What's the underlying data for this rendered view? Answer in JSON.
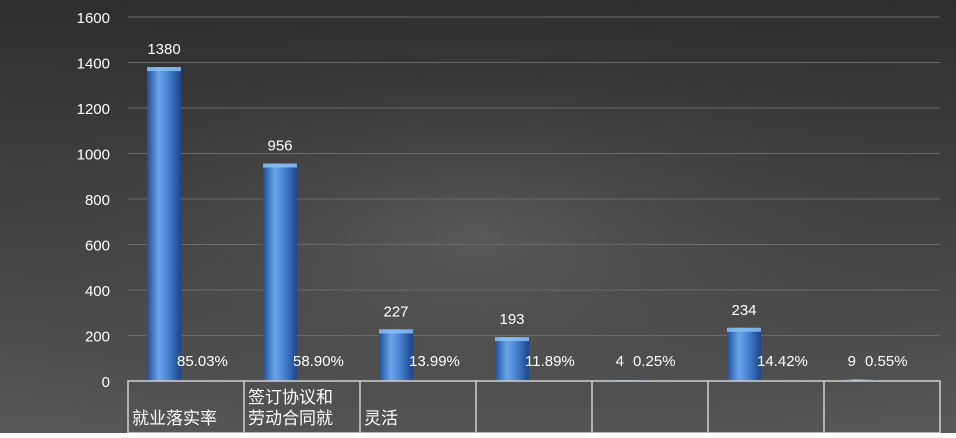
{
  "chart_data": {
    "type": "bar",
    "title": "",
    "xlabel": "",
    "ylabel": "",
    "ylim": [
      0,
      1600
    ],
    "yticks": [
      "0",
      "200",
      "400",
      "600",
      "800",
      "1000",
      "1200",
      "1400",
      "1600"
    ],
    "grid": true,
    "legend": "none",
    "category_labels_visible": [
      [
        "就业落实率"
      ],
      [
        "签订协议和",
        "劳动合同就"
      ],
      [
        "灵活"
      ],
      [
        ""
      ],
      [
        ""
      ],
      [
        ""
      ],
      [
        ""
      ]
    ],
    "values": [
      1380,
      956,
      227,
      193,
      4,
      234,
      9
    ],
    "value_labels": [
      "1380",
      "956",
      "227",
      "193",
      "4",
      "234",
      "9"
    ],
    "percent_labels": [
      "85.03%",
      "58.90%",
      "13.99%",
      "11.89%",
      "0.25%",
      "14.42%",
      "0.55%"
    ]
  },
  "colors": {
    "background_top": "#3a3a3a",
    "background_bottom": "#545454",
    "bar_light": "#6fa6e6",
    "bar_dark": "#1e4f9a",
    "gridline": "#6a6a6a",
    "text": "#ffffff",
    "table_line": "#d0d0d0"
  }
}
